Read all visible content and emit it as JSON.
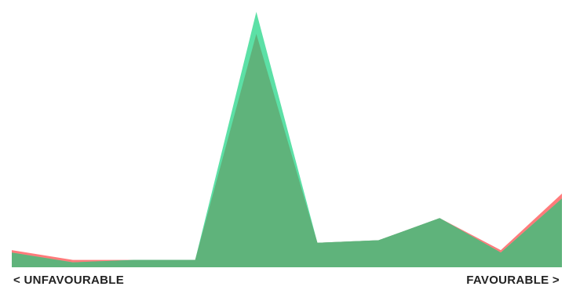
{
  "chart_data": {
    "type": "area",
    "x": [
      1,
      2,
      3,
      4,
      5,
      6,
      7,
      8,
      9,
      10
    ],
    "series": [
      {
        "color": "#ff7b7b",
        "values": [
          7,
          3,
          3,
          3,
          100,
          10,
          11,
          20,
          7,
          30
        ]
      },
      {
        "color": "#5ce0a6",
        "values": [
          6,
          2,
          3,
          3,
          104,
          10,
          11,
          20,
          6,
          28
        ]
      },
      {
        "color": "#5fb37b",
        "values": [
          6,
          2,
          3,
          3,
          95,
          10,
          11,
          20,
          6,
          28
        ]
      }
    ],
    "ylim": [
      0,
      105
    ],
    "grid": false,
    "xlabel_left": "< UNFAVOURABLE",
    "xlabel_right": "FAVOURABLE >"
  }
}
